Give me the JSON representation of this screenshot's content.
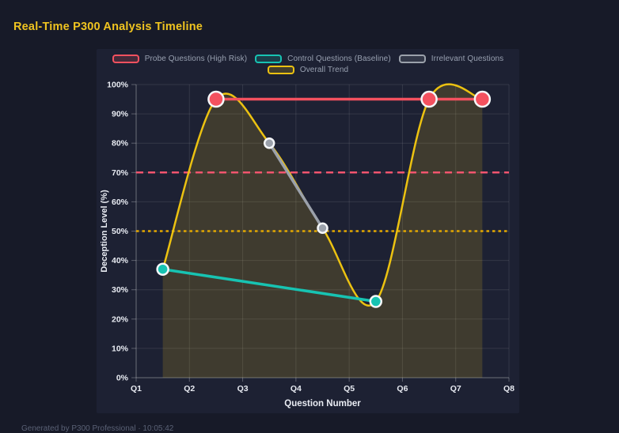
{
  "page": {
    "title": "Real-Time P300 Analysis Timeline",
    "footer": "Generated by P300 Professional · 10:05:42"
  },
  "colors": {
    "page_bg": "#171a28",
    "panel_bg": "#1d2133",
    "title": "#f0c420",
    "axis_text": "#e8ebf2",
    "legend_text": "#98a0b0",
    "grid": "rgba(255,255,255,0.10)",
    "axis_line": "rgba(255,255,255,0.28)",
    "point_ring": "#f5f7fa",
    "probe": "#f4515f",
    "control": "#17c3b2",
    "irrelevant": "#9ba1ab",
    "trend": "#ecc211",
    "trend_fill": "rgba(240,200,30,0.16)",
    "threshold_high": "#f2546e",
    "threshold_mid": "#e3a800"
  },
  "legend": {
    "items": [
      {
        "label": "Probe Questions (High Risk)",
        "color_key": "probe"
      },
      {
        "label": "Control Questions (Baseline)",
        "color_key": "control"
      },
      {
        "label": "Irrelevant Questions",
        "color_key": "irrelevant"
      },
      {
        "label": "Overall Trend",
        "color_key": "trend"
      }
    ]
  },
  "chart_data": {
    "type": "line",
    "title": "Real-Time P300 Analysis Timeline",
    "xlabel": "Question Number",
    "ylabel": "Deception Level (%)",
    "x_ticks": [
      "Q1",
      "Q2",
      "Q3",
      "Q4",
      "Q5",
      "Q6",
      "Q7",
      "Q8"
    ],
    "x_range": [
      1,
      8
    ],
    "y_ticks": [
      "0%",
      "10%",
      "20%",
      "30%",
      "40%",
      "50%",
      "60%",
      "70%",
      "80%",
      "90%",
      "100%"
    ],
    "ylim": [
      0,
      100
    ],
    "grid": true,
    "legend_position": "top",
    "series": [
      {
        "name": "Overall Trend",
        "color_key": "trend",
        "smooth": true,
        "fill": true,
        "line_width": 2.5,
        "point_radius": 0,
        "points": [
          {
            "x": 1.5,
            "y": 37
          },
          {
            "x": 2.5,
            "y": 95
          },
          {
            "x": 3.5,
            "y": 80
          },
          {
            "x": 4.5,
            "y": 51
          },
          {
            "x": 5.5,
            "y": 26
          },
          {
            "x": 6.5,
            "y": 95
          },
          {
            "x": 7.5,
            "y": 95
          }
        ]
      },
      {
        "name": "Irrelevant Questions",
        "color_key": "irrelevant",
        "smooth": false,
        "fill": false,
        "line_width": 3.5,
        "point_radius": 6,
        "points": [
          {
            "x": 3.5,
            "y": 80
          },
          {
            "x": 4.5,
            "y": 51
          }
        ]
      },
      {
        "name": "Control Questions (Baseline)",
        "color_key": "control",
        "smooth": false,
        "fill": false,
        "line_width": 3.5,
        "point_radius": 7,
        "points": [
          {
            "x": 1.5,
            "y": 37
          },
          {
            "x": 5.5,
            "y": 26
          }
        ]
      },
      {
        "name": "Probe Questions (High Risk)",
        "color_key": "probe",
        "smooth": false,
        "fill": false,
        "line_width": 3.5,
        "point_radius": 9.5,
        "points": [
          {
            "x": 2.5,
            "y": 95
          },
          {
            "x": 6.5,
            "y": 95
          },
          {
            "x": 7.5,
            "y": 95
          }
        ]
      }
    ],
    "thresholds": [
      {
        "value": 70,
        "style": "dashed",
        "color_key": "threshold_high"
      },
      {
        "value": 50,
        "style": "dotted",
        "color_key": "threshold_mid"
      }
    ]
  }
}
